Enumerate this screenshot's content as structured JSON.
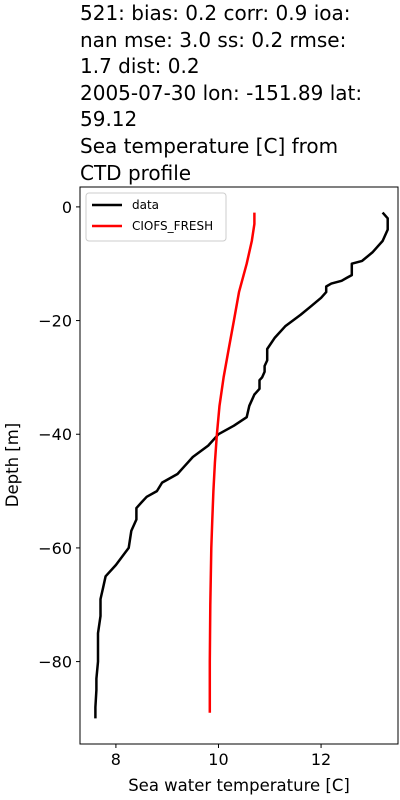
{
  "title_lines": [
    "521: bias: 0.2  corr: 0.9  ioa:",
    "nan  mse: 3.0  ss: 0.2  rmse:",
    "1.7  dist: 0.2",
    "2005-07-30 lon: -151.89 lat:",
    "59.12",
    "Sea temperature [C] from",
    "CTD profile"
  ],
  "chart_data": {
    "type": "line",
    "title": "521: bias: 0.2  corr: 0.9  ioa: nan  mse: 3.0  ss: 0.2  rmse: 1.7  dist: 0.2 2005-07-30 lon: -151.89 lat: 59.12 Sea temperature [C] from CTD profile",
    "xlabel": "Sea water temperature [C]",
    "ylabel": "Depth [m]",
    "xlim": [
      7.3,
      13.5
    ],
    "ylim": [
      -94.5,
      3.5
    ],
    "xticks": [
      8,
      10,
      12
    ],
    "yticks": [
      0,
      -20,
      -40,
      -60,
      -80
    ],
    "xtick_labels": [
      "8",
      "10",
      "12"
    ],
    "ytick_labels": [
      "0",
      "−20",
      "−40",
      "−60",
      "−80"
    ],
    "grid": false,
    "legend_position": "top-left",
    "series": [
      {
        "name": "data",
        "color": "#000000",
        "x": [
          13.2,
          13.3,
          13.3,
          13.2,
          13.0,
          12.8,
          12.6,
          12.6,
          12.5,
          12.4,
          12.2,
          12.1,
          12.1,
          12.0,
          11.8,
          11.6,
          11.3,
          11.1,
          10.95,
          10.95,
          10.9,
          10.9,
          10.85,
          10.8,
          10.8,
          10.7,
          10.6,
          10.55,
          10.3,
          10.0,
          9.8,
          9.5,
          9.4,
          9.3,
          9.2,
          8.9,
          8.8,
          8.6,
          8.5,
          8.4,
          8.4,
          8.3,
          8.25,
          8.0,
          7.8,
          7.75,
          7.7,
          7.7,
          7.65,
          7.65,
          7.62,
          7.62,
          7.6,
          7.6
        ],
        "y": [
          -1,
          -2,
          -4,
          -6,
          -8,
          -9.5,
          -10,
          -12,
          -12.5,
          -13,
          -13.5,
          -14,
          -15,
          -16,
          -17.5,
          -19,
          -21,
          -23,
          -25,
          -27,
          -28,
          -29,
          -30,
          -30.5,
          -32,
          -33,
          -35,
          -37,
          -38.5,
          -40,
          -42,
          -44,
          -45,
          -46,
          -47,
          -48.5,
          -50,
          -51,
          -52,
          -53,
          -55,
          -57,
          -60,
          -63,
          -65,
          -67,
          -69,
          -72,
          -75,
          -80,
          -83,
          -85,
          -88,
          -90
        ]
      },
      {
        "name": "CIOFS_FRESH",
        "color": "#ff0000",
        "x": [
          10.7,
          10.7,
          10.65,
          10.55,
          10.4,
          10.3,
          10.2,
          10.1,
          10.02,
          9.97,
          9.93,
          9.9,
          9.88,
          9.86,
          9.84,
          9.83,
          9.83
        ],
        "y": [
          -1,
          -3,
          -6,
          -10,
          -15,
          -20,
          -25,
          -30,
          -35,
          -40,
          -45,
          -50,
          -55,
          -60,
          -70,
          -80,
          -89
        ]
      }
    ]
  }
}
